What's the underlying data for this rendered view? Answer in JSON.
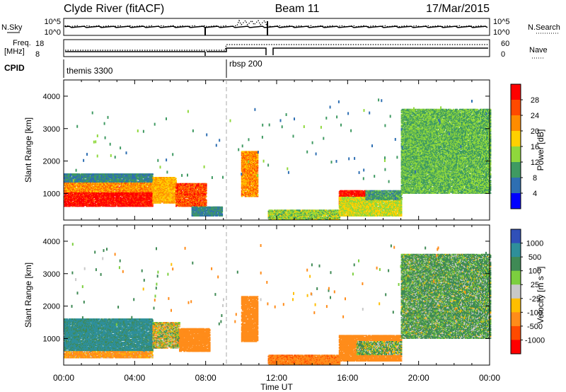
{
  "header": {
    "station": "Clyde River (fitACF)",
    "beam": "Beam 11",
    "date": "17/Mar/2015"
  },
  "sky_panel": {
    "left_label": "N.Sky",
    "left_ticks": [
      "10^5",
      "10^0"
    ],
    "right_label": "N.Search",
    "right_ticks": [
      "10^5",
      "10^0"
    ]
  },
  "freq_panel": {
    "left_label_line1": "Freq.",
    "left_label_line2": "[MHz]",
    "left_ticks": [
      "18",
      "8"
    ],
    "right_label": "Nave",
    "right_ticks": [
      "60",
      "0"
    ]
  },
  "cpid": {
    "label": "CPID",
    "segments": [
      {
        "name": "themis 3300",
        "start_h": 0.0
      },
      {
        "name": "rbsp 200",
        "start_h": 9.1
      }
    ]
  },
  "time_axis": {
    "ticks": [
      "00:00",
      "04:00",
      "08:00",
      "12:00",
      "16:00",
      "20:00",
      "00:00"
    ],
    "label": "Time UT"
  },
  "power_panel": {
    "ylabel": "Slant Range [km]",
    "yticks": [
      "4000",
      "3000",
      "2000",
      "1000"
    ],
    "colorbar_label": "Power [dB]",
    "colorbar_ticks": [
      "28",
      "24",
      "20",
      "16",
      "12",
      "8",
      "4"
    ],
    "colorbar_colors": [
      "#ff0000",
      "#ff4a00",
      "#ff8c00",
      "#ffd000",
      "#8fd83c",
      "#3f9a62",
      "#2e6fb2",
      "#0000ff"
    ]
  },
  "velocity_panel": {
    "ylabel": "Slant Range [km]",
    "yticks": [
      "4000",
      "3000",
      "2000",
      "1000"
    ],
    "colorbar_label": "Velocity [m s⁻¹]",
    "colorbar_ticks": [
      "1000",
      "500",
      "100",
      "25",
      "-25",
      "-100",
      "-500",
      "-1000"
    ],
    "colorbar_colors": [
      "#3050b8",
      "#2f8f9a",
      "#3f8a55",
      "#7ccf3e",
      "#c8c8c8",
      "#ffbe00",
      "#ff8c1a",
      "#ff4a00",
      "#ff0000"
    ]
  },
  "chart_data": [
    {
      "type": "heatmap",
      "title": "Power",
      "xlabel": "Time UT",
      "ylabel": "Slant Range [km]",
      "xlim": [
        0,
        24
      ],
      "ylim": [
        180,
        4500
      ],
      "value_range": [
        0,
        30
      ],
      "regions": [
        {
          "t0": 0.0,
          "t1": 5.0,
          "r0": 600,
          "r1": 1050,
          "value": 28
        },
        {
          "t0": 0.0,
          "t1": 5.0,
          "r0": 1050,
          "r1": 1350,
          "value": 20
        },
        {
          "t0": 0.0,
          "t1": 5.0,
          "r0": 1350,
          "r1": 1600,
          "value": 6
        },
        {
          "t0": 5.0,
          "t1": 6.3,
          "r0": 700,
          "r1": 1500,
          "value": 18
        },
        {
          "t0": 6.3,
          "t1": 8.0,
          "r0": 600,
          "r1": 1300,
          "value": 24
        },
        {
          "t0": 7.2,
          "t1": 8.9,
          "r0": 300,
          "r1": 600,
          "value": 6
        },
        {
          "t0": 10.0,
          "t1": 10.9,
          "r0": 900,
          "r1": 2300,
          "value": 20
        },
        {
          "t0": 11.5,
          "t1": 15.5,
          "r0": 200,
          "r1": 500,
          "value": 12
        },
        {
          "t0": 15.5,
          "t1": 17.0,
          "r0": 650,
          "r1": 1100,
          "value": 28
        },
        {
          "t0": 15.5,
          "t1": 19.0,
          "r0": 300,
          "r1": 900,
          "value": 14
        },
        {
          "t0": 17.0,
          "t1": 19.0,
          "r0": 800,
          "r1": 1100,
          "value": 8
        },
        {
          "t0": 19.0,
          "t1": 24.0,
          "r0": 1000,
          "r1": 3600,
          "value": 10
        }
      ]
    },
    {
      "type": "heatmap",
      "title": "Velocity",
      "xlabel": "Time UT",
      "ylabel": "Slant Range [km]",
      "xlim": [
        0,
        24
      ],
      "ylim": [
        180,
        4500
      ],
      "value_range": [
        -1000,
        1000
      ],
      "regions": [
        {
          "t0": 0.0,
          "t1": 5.0,
          "r0": 600,
          "r1": 1600,
          "value": 600
        },
        {
          "t0": 0.0,
          "t1": 5.0,
          "r0": 400,
          "r1": 600,
          "value": -200
        },
        {
          "t0": 5.0,
          "t1": 6.5,
          "r0": 700,
          "r1": 1500,
          "value": 0
        },
        {
          "t0": 6.5,
          "t1": 8.2,
          "r0": 600,
          "r1": 1300,
          "value": -300
        },
        {
          "t0": 10.0,
          "t1": 10.9,
          "r0": 900,
          "r1": 2300,
          "value": -300
        },
        {
          "t0": 11.5,
          "t1": 15.5,
          "r0": 200,
          "r1": 500,
          "value": -400
        },
        {
          "t0": 15.5,
          "t1": 19.0,
          "r0": 300,
          "r1": 1100,
          "value": -300
        },
        {
          "t0": 16.5,
          "t1": 19.0,
          "r0": 500,
          "r1": 900,
          "value": 80
        },
        {
          "t0": 19.0,
          "t1": 24.0,
          "r0": 1000,
          "r1": 3600,
          "value": 150
        }
      ]
    }
  ]
}
